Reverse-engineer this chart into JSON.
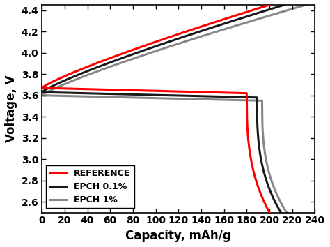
{
  "title": "",
  "xlabel": "Capacity, mAh/g",
  "ylabel": "Voltage, V",
  "xlim": [
    0,
    240
  ],
  "ylim": [
    2.5,
    4.45
  ],
  "xticks": [
    0,
    20,
    40,
    60,
    80,
    100,
    120,
    140,
    160,
    180,
    200,
    220,
    240
  ],
  "yticks": [
    2.6,
    2.8,
    3.0,
    3.2,
    3.4,
    3.6,
    3.8,
    4.0,
    4.2,
    4.4
  ],
  "legend_labels": [
    "REFERENCE",
    "EPCH 0.1%",
    "EPCH 1%"
  ],
  "legend_colors": [
    "#ff0000",
    "#1a1a1a",
    "#888888"
  ],
  "lw": 2.2,
  "background_color": "#ffffff",
  "tick_fontsize": 10,
  "label_fontsize": 12,
  "ref_charge_cap": 200,
  "ref_discharge_cap": 200,
  "e01_charge_cap": 213,
  "e01_discharge_cap": 210,
  "e1_charge_cap": 232,
  "e1_discharge_cap": 215,
  "ref_v_start": 3.67,
  "e01_v_start": 3.63,
  "e1_v_start": 3.6
}
